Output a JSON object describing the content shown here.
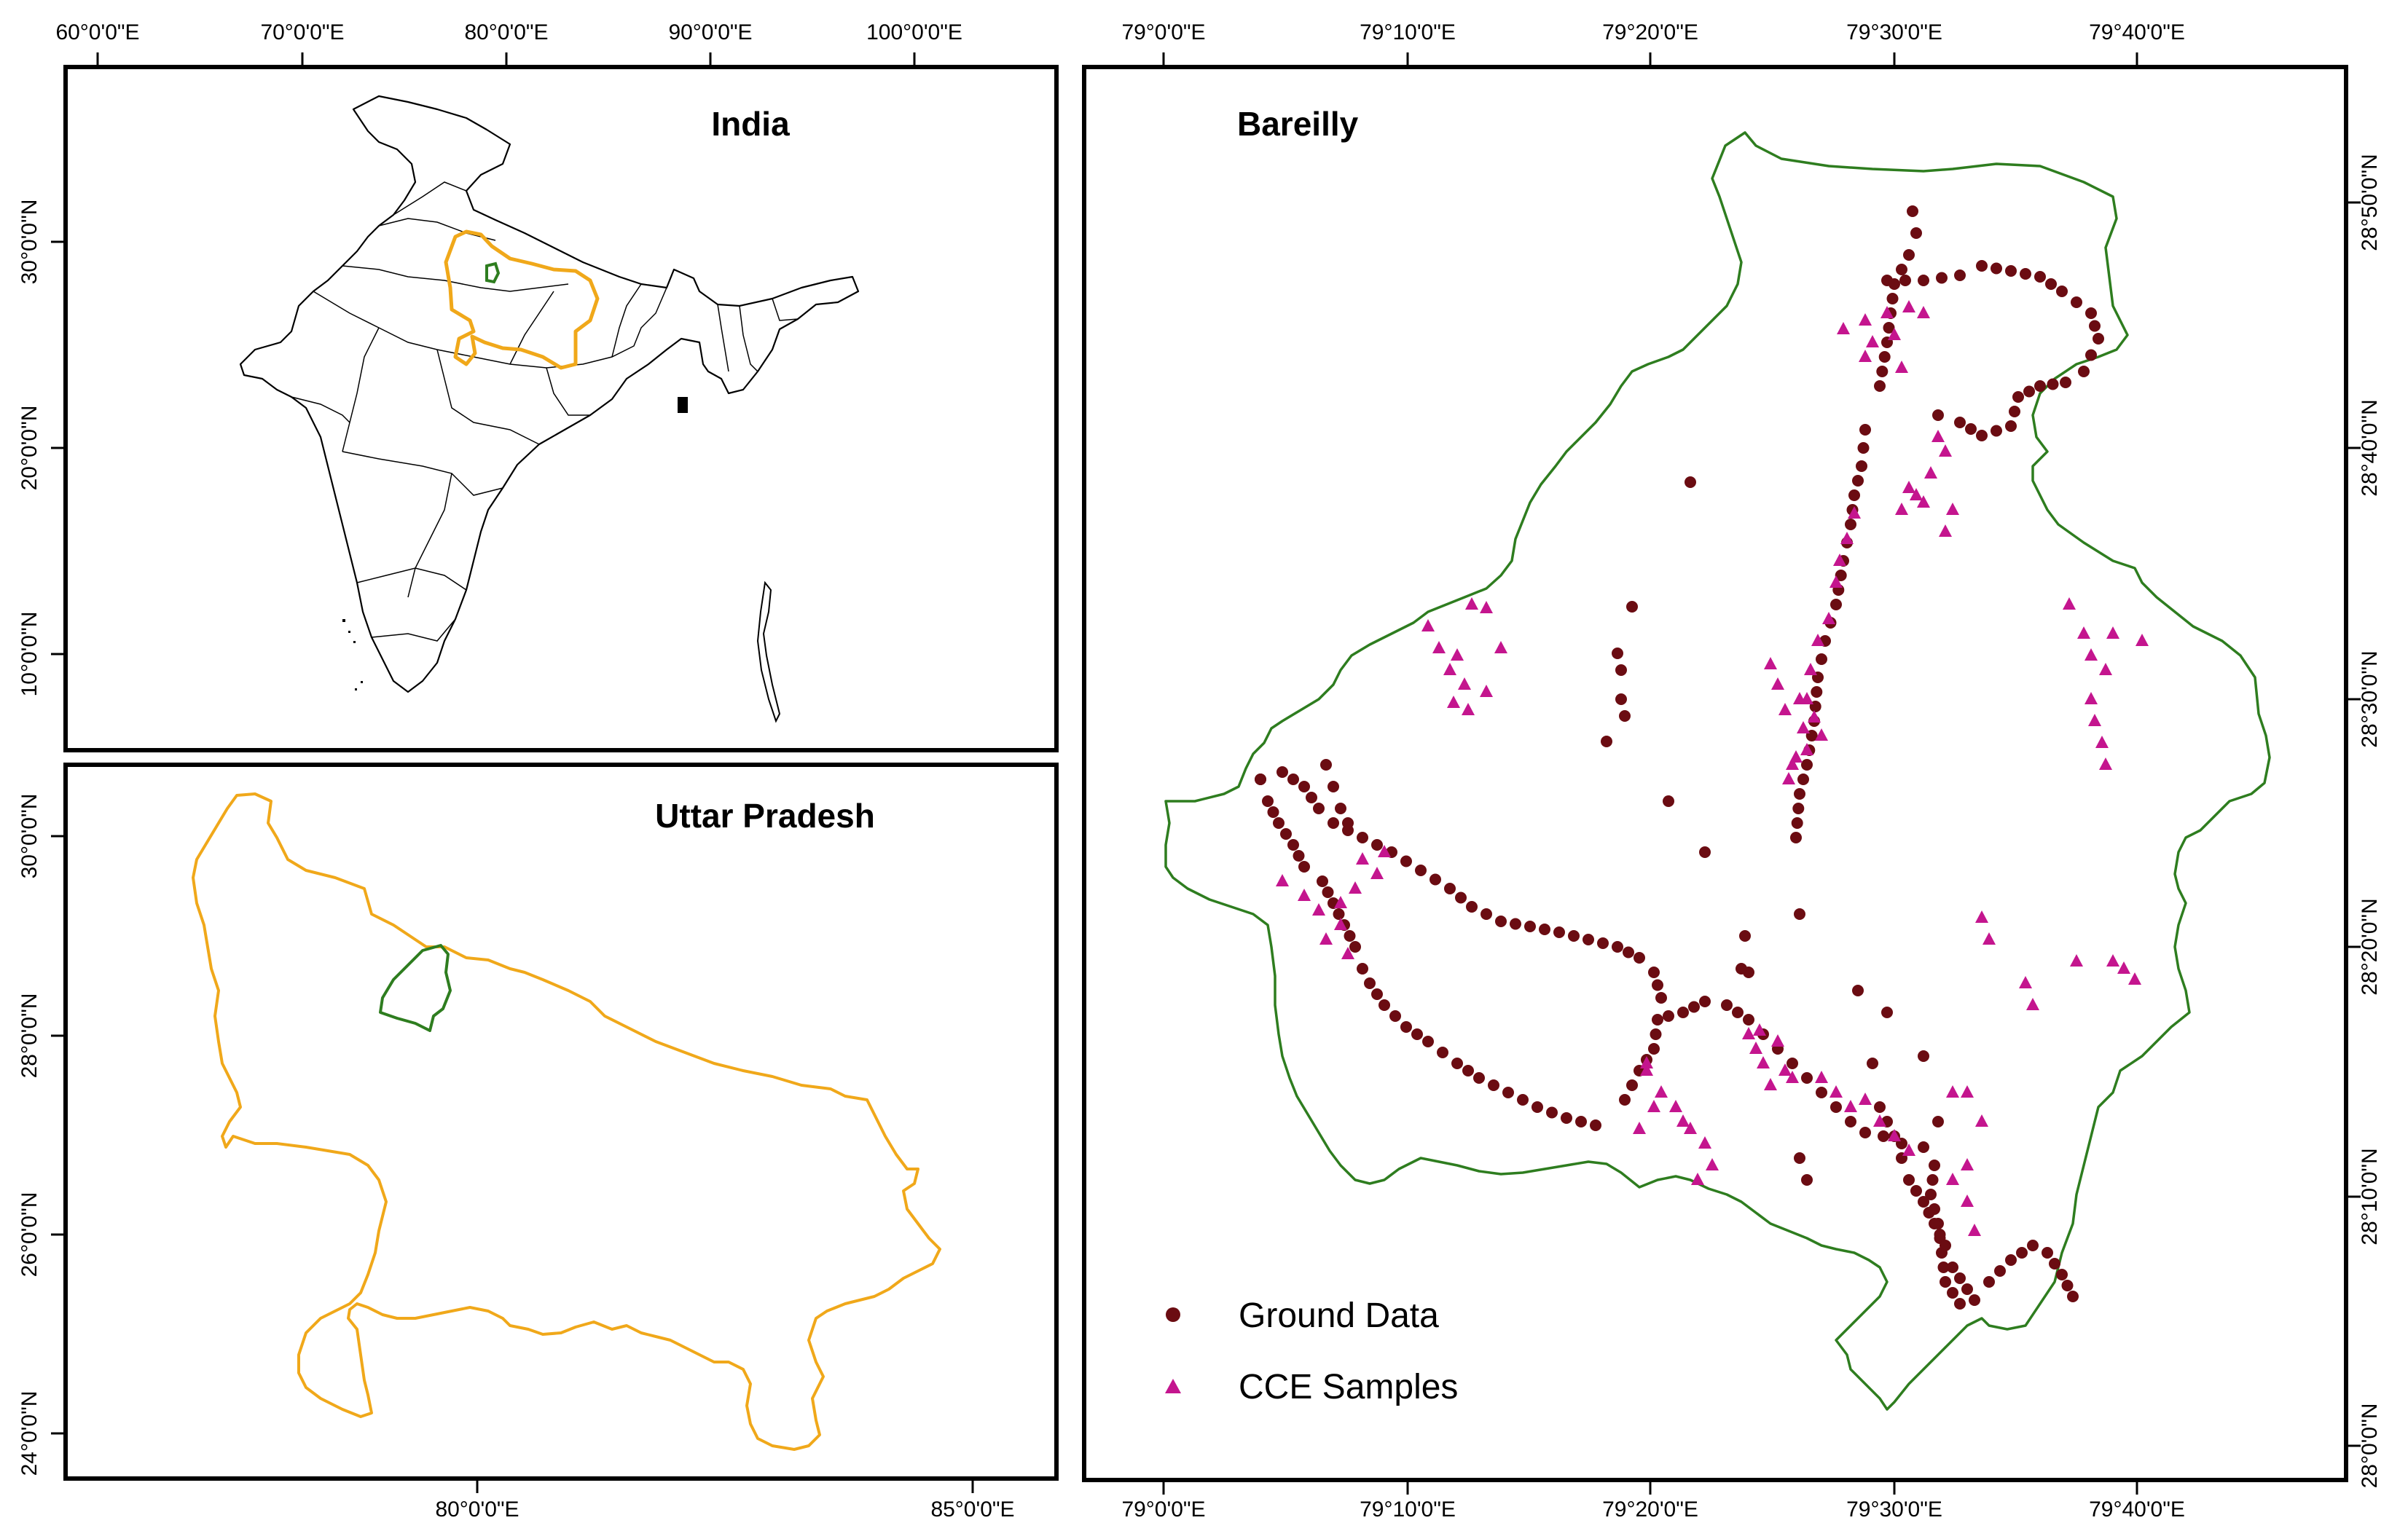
{
  "india_panel": {
    "title": "India",
    "top_ticks": [
      "60°0'0\"E",
      "70°0'0\"E",
      "80°0'0\"E",
      "90°0'0\"E",
      "100°0'0\"E"
    ],
    "left_ticks": [
      "30°0'0\"N",
      "20°0'0\"N",
      "10°0'0\"N"
    ]
  },
  "up_panel": {
    "title": "Uttar Pradesh",
    "bottom_ticks": [
      "80°0'0\"E",
      "85°0'0\"E"
    ],
    "left_ticks": [
      "30°0'0\"N",
      "28°0'0\"N",
      "26°0'0\"N",
      "24°0'0\"N"
    ]
  },
  "bareilly_panel": {
    "title": "Bareilly",
    "top_ticks": [
      "79°0'0\"E",
      "79°10'0\"E",
      "79°20'0\"E",
      "79°30'0\"E",
      "79°40'0\"E"
    ],
    "bottom_ticks": [
      "79°0'0\"E",
      "79°10'0\"E",
      "79°20'0\"E",
      "79°30'0\"E",
      "79°40'0\"E"
    ],
    "right_ticks": [
      "28°50'0\"N",
      "28°40'0\"N",
      "28°30'0\"N",
      "28°20'0\"N",
      "28°10'0\"N",
      "28°0'0\"N"
    ],
    "legend": [
      {
        "label": "Ground Data",
        "symbol": "circle",
        "color": "#6b0c12"
      },
      {
        "label": "CCE Samples",
        "symbol": "triangle",
        "color": "#c4158e"
      }
    ]
  },
  "colors": {
    "india_outline": "#000000",
    "up_boundary": "#f0a81a",
    "bareilly_boundary": "#2e7d1f",
    "ground_data": "#6b0c12",
    "cce_samples": "#c4158e"
  }
}
